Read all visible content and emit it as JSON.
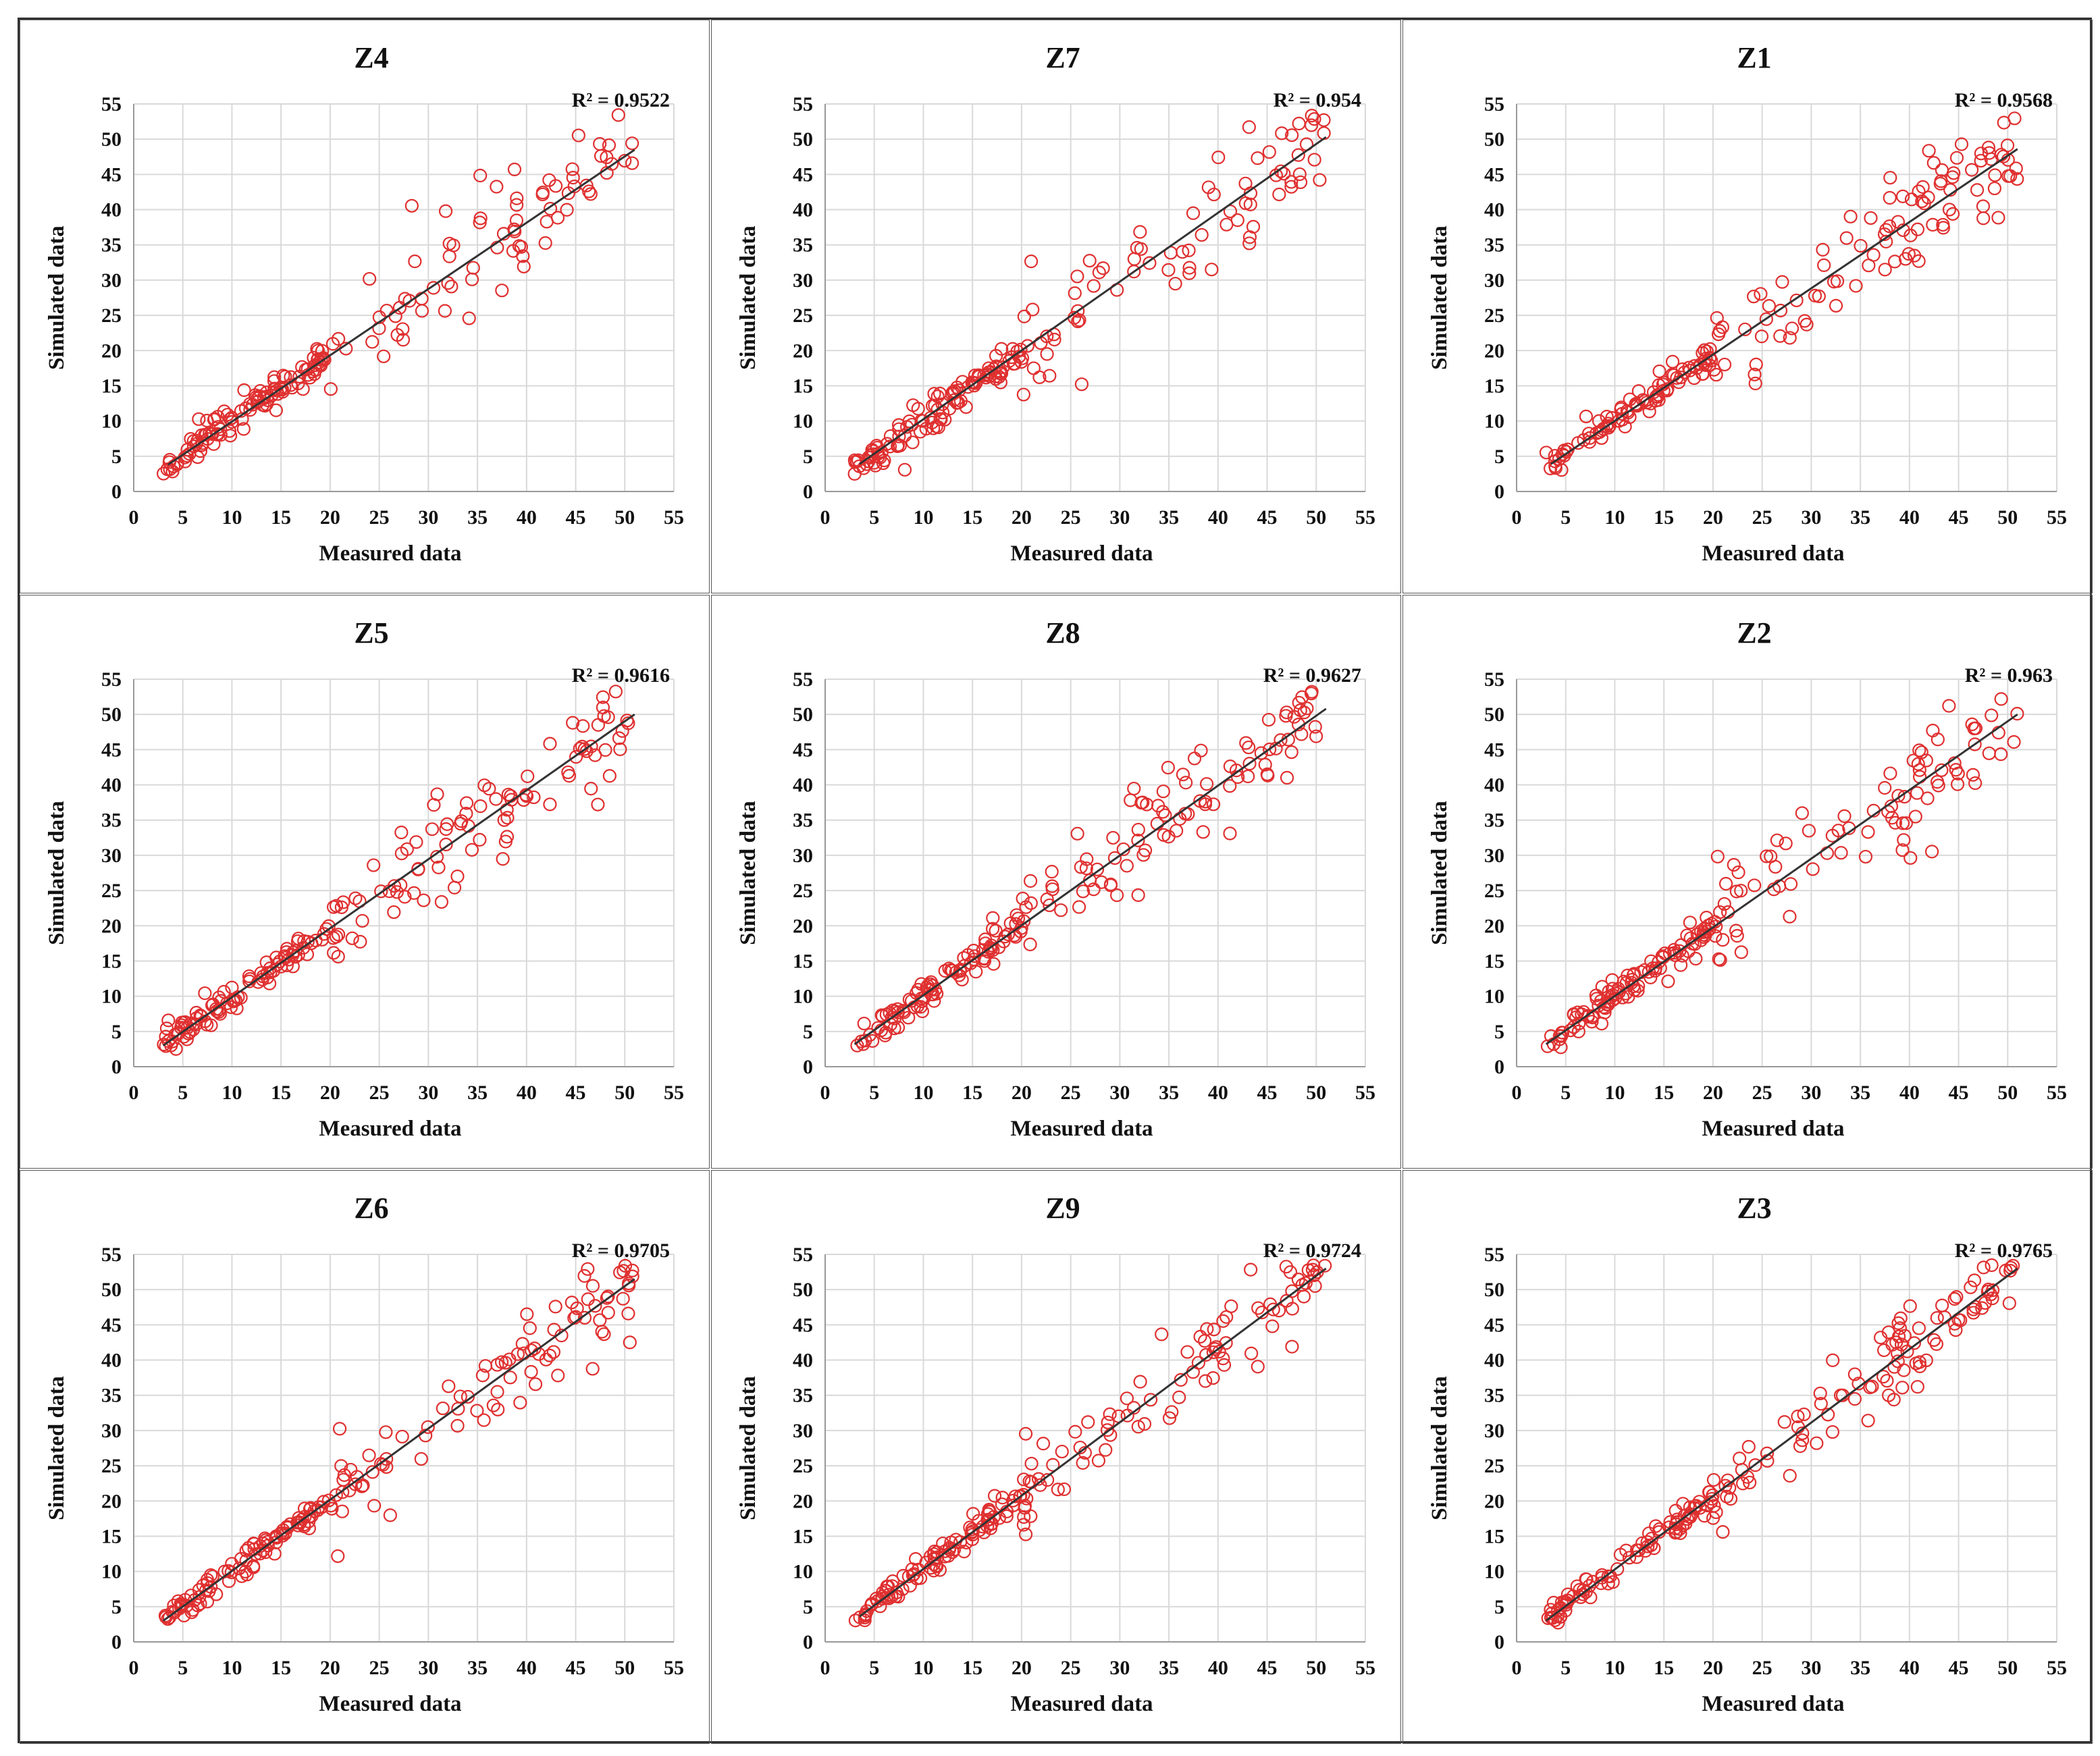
{
  "chart_data": [
    {
      "type": "scatter",
      "title": "Z4",
      "r2_label": "R² = 0.9522",
      "xlabel": "Measured data",
      "ylabel": "Simulated data",
      "xlim": [
        0,
        55
      ],
      "ylim": [
        0,
        55
      ],
      "xticks": [
        0,
        5,
        10,
        15,
        20,
        25,
        30,
        35,
        40,
        45,
        50,
        55
      ],
      "yticks": [
        0,
        5,
        10,
        15,
        20,
        25,
        30,
        35,
        40,
        45,
        50,
        55
      ],
      "trendline": {
        "x": [
          3.5,
          51
        ],
        "y": [
          3.8,
          48.5
        ]
      },
      "points_seed": 4,
      "points_spread": 2.6
    },
    {
      "type": "scatter",
      "title": "Z7",
      "r2_label": "R² = 0.954",
      "xlabel": "Measured data",
      "ylabel": "Simulated data",
      "xlim": [
        0,
        55
      ],
      "ylim": [
        0,
        55
      ],
      "xticks": [
        0,
        5,
        10,
        15,
        20,
        25,
        30,
        35,
        40,
        45,
        50,
        55
      ],
      "yticks": [
        0,
        5,
        10,
        15,
        20,
        25,
        30,
        35,
        40,
        45,
        50,
        55
      ],
      "trendline": {
        "x": [
          3.5,
          51
        ],
        "y": [
          3.9,
          50.3
        ]
      },
      "points_seed": 7,
      "points_spread": 2.7
    },
    {
      "type": "scatter",
      "title": "Z1",
      "r2_label": "R² = 0.9568",
      "xlabel": "Measured data",
      "ylabel": "Simulated data",
      "xlim": [
        0,
        55
      ],
      "ylim": [
        0,
        55
      ],
      "xticks": [
        0,
        5,
        10,
        15,
        20,
        25,
        30,
        35,
        40,
        45,
        50,
        55
      ],
      "yticks": [
        0,
        5,
        10,
        15,
        20,
        25,
        30,
        35,
        40,
        45,
        50,
        55
      ],
      "trendline": {
        "x": [
          3.5,
          51
        ],
        "y": [
          3.9,
          48.6
        ]
      },
      "points_seed": 1,
      "points_spread": 2.5
    },
    {
      "type": "scatter",
      "title": "Z5",
      "r2_label": "R² = 0.9616",
      "xlabel": "Measured data",
      "ylabel": "Simulated data",
      "xlim": [
        0,
        55
      ],
      "ylim": [
        0,
        55
      ],
      "xticks": [
        0,
        5,
        10,
        15,
        20,
        25,
        30,
        35,
        40,
        45,
        50,
        55
      ],
      "yticks": [
        0,
        5,
        10,
        15,
        20,
        25,
        30,
        35,
        40,
        45,
        50,
        55
      ],
      "trendline": {
        "x": [
          3,
          51
        ],
        "y": [
          3.0,
          50.0
        ]
      },
      "points_seed": 5,
      "points_spread": 2.4
    },
    {
      "type": "scatter",
      "title": "Z8",
      "r2_label": "R² = 0.9627",
      "xlabel": "Measured data",
      "ylabel": "Simulated data",
      "xlim": [
        0,
        55
      ],
      "ylim": [
        0,
        55
      ],
      "xticks": [
        0,
        5,
        10,
        15,
        20,
        25,
        30,
        35,
        40,
        45,
        50,
        55
      ],
      "yticks": [
        0,
        5,
        10,
        15,
        20,
        25,
        30,
        35,
        40,
        45,
        50,
        55
      ],
      "trendline": {
        "x": [
          3,
          51
        ],
        "y": [
          3.2,
          50.8
        ]
      },
      "points_seed": 8,
      "points_spread": 2.4
    },
    {
      "type": "scatter",
      "title": "Z2",
      "r2_label": "R² = 0.963",
      "xlabel": "Measured data",
      "ylabel": "Simulated data",
      "xlim": [
        0,
        55
      ],
      "ylim": [
        0,
        55
      ],
      "xticks": [
        0,
        5,
        10,
        15,
        20,
        25,
        30,
        35,
        40,
        45,
        50,
        55
      ],
      "yticks": [
        0,
        5,
        10,
        15,
        20,
        25,
        30,
        35,
        40,
        45,
        50,
        55
      ],
      "trendline": {
        "x": [
          3,
          51
        ],
        "y": [
          3.2,
          50.0
        ]
      },
      "points_seed": 2,
      "points_spread": 2.3
    },
    {
      "type": "scatter",
      "title": "Z6",
      "r2_label": "R² = 0.9705",
      "xlabel": "Measured data",
      "ylabel": "Simulated data",
      "xlim": [
        0,
        55
      ],
      "ylim": [
        0,
        55
      ],
      "xticks": [
        0,
        5,
        10,
        15,
        20,
        25,
        30,
        35,
        40,
        45,
        50,
        55
      ],
      "yticks": [
        0,
        5,
        10,
        15,
        20,
        25,
        30,
        35,
        40,
        45,
        50,
        55
      ],
      "trendline": {
        "x": [
          3,
          51
        ],
        "y": [
          3.0,
          51.5
        ]
      },
      "points_seed": 6,
      "points_spread": 2.1
    },
    {
      "type": "scatter",
      "title": "Z9",
      "r2_label": "R² = 0.9724",
      "xlabel": "Measured data",
      "ylabel": "Simulated data",
      "xlim": [
        0,
        55
      ],
      "ylim": [
        0,
        55
      ],
      "xticks": [
        0,
        5,
        10,
        15,
        20,
        25,
        30,
        35,
        40,
        45,
        50,
        55
      ],
      "yticks": [
        0,
        5,
        10,
        15,
        20,
        25,
        30,
        35,
        40,
        45,
        50,
        55
      ],
      "trendline": {
        "x": [
          3.5,
          51
        ],
        "y": [
          3.6,
          53.0
        ]
      },
      "points_seed": 9,
      "points_spread": 2.1
    },
    {
      "type": "scatter",
      "title": "Z3",
      "r2_label": "R² = 0.9765",
      "xlabel": "Measured data",
      "ylabel": "Simulated data",
      "xlim": [
        0,
        55
      ],
      "ylim": [
        0,
        55
      ],
      "xticks": [
        0,
        5,
        10,
        15,
        20,
        25,
        30,
        35,
        40,
        45,
        50,
        55
      ],
      "yticks": [
        0,
        5,
        10,
        15,
        20,
        25,
        30,
        35,
        40,
        45,
        50,
        55
      ],
      "trendline": {
        "x": [
          3,
          51
        ],
        "y": [
          3.0,
          53.0
        ]
      },
      "points_seed": 3,
      "points_spread": 1.9
    }
  ],
  "colors": {
    "points": "#e03030",
    "trend": "#333333",
    "grid": "#d9d9d9",
    "axis": "#999999",
    "text": "#111111"
  }
}
